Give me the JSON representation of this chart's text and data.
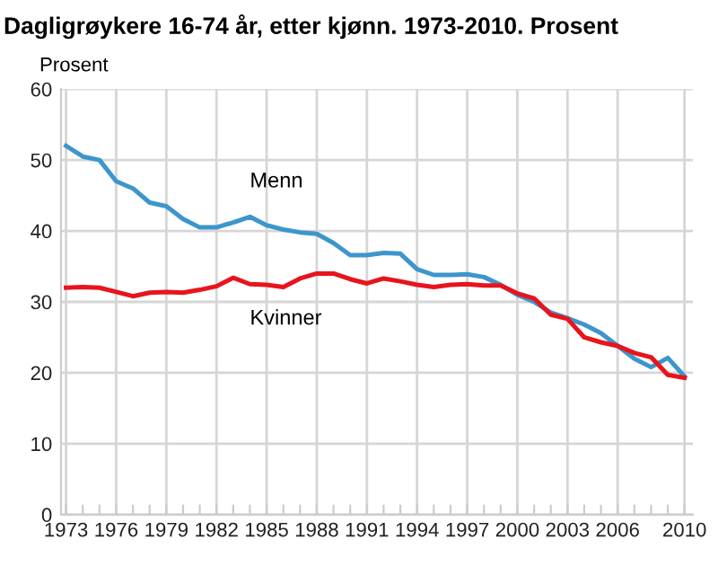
{
  "chart_data": {
    "type": "line",
    "title": "Dagligrøykere 16-74 år, etter kjønn. 1973-2010. Prosent",
    "ylabel": "Prosent",
    "x": [
      1973,
      1974,
      1975,
      1976,
      1977,
      1978,
      1979,
      1980,
      1981,
      1982,
      1983,
      1984,
      1985,
      1986,
      1987,
      1988,
      1989,
      1990,
      1991,
      1992,
      1993,
      1994,
      1995,
      1996,
      1997,
      1998,
      1999,
      2000,
      2001,
      2002,
      2003,
      2004,
      2005,
      2006,
      2007,
      2008,
      2009,
      2010
    ],
    "series": [
      {
        "name": "Menn",
        "color": "#3c96cc",
        "values": [
          52,
          50.5,
          50,
          47,
          46,
          44,
          43.5,
          41.7,
          40.5,
          40.5,
          41.2,
          42,
          40.8,
          40.2,
          39.8,
          39.6,
          38.3,
          36.6,
          36.6,
          36.9,
          36.8,
          34.6,
          33.8,
          33.8,
          33.9,
          33.5,
          32.4,
          31,
          30,
          28.5,
          27.7,
          26.8,
          25.6,
          23.8,
          22,
          20.8,
          22.1,
          19.5
        ]
      },
      {
        "name": "Kvinner",
        "color": "#e8141c",
        "values": [
          32,
          32.1,
          32,
          31.4,
          30.8,
          31.3,
          31.4,
          31.3,
          31.7,
          32.2,
          33.4,
          32.5,
          32.4,
          32.1,
          33.3,
          34,
          34,
          33.2,
          32.6,
          33.3,
          32.9,
          32.4,
          32.1,
          32.4,
          32.5,
          32.3,
          32.3,
          31.2,
          30.5,
          28.2,
          27.6,
          25,
          24.3,
          23.8,
          22.8,
          22.2,
          19.7,
          19.3
        ]
      }
    ],
    "xlim": [
      1972.7,
      2010.5
    ],
    "ylim": [
      0,
      60
    ],
    "yticks": [
      0,
      10,
      20,
      30,
      40,
      50,
      60
    ],
    "xticks": [
      1973,
      {
        "value": 1974,
        "label": null
      },
      {
        "value": 1975,
        "label": null
      },
      1976,
      {
        "value": 1977,
        "label": null
      },
      {
        "value": 1978,
        "label": null
      },
      1979,
      {
        "value": 1980,
        "label": null
      },
      {
        "value": 1981,
        "label": null
      },
      1982,
      {
        "value": 1983,
        "label": null
      },
      {
        "value": 1984,
        "label": null
      },
      1985,
      {
        "value": 1986,
        "label": null
      },
      {
        "value": 1987,
        "label": null
      },
      1988,
      {
        "value": 1989,
        "label": null
      },
      {
        "value": 1990,
        "label": null
      },
      1991,
      {
        "value": 1992,
        "label": null
      },
      {
        "value": 1993,
        "label": null
      },
      1994,
      {
        "value": 1995,
        "label": null
      },
      {
        "value": 1996,
        "label": null
      },
      1997,
      {
        "value": 1998,
        "label": null
      },
      {
        "value": 1999,
        "label": null
      },
      2000,
      {
        "value": 2001,
        "label": null
      },
      {
        "value": 2002,
        "label": null
      },
      2003,
      {
        "value": 2004,
        "label": null
      },
      {
        "value": 2005,
        "label": null
      },
      2006,
      {
        "value": 2007,
        "label": null
      },
      {
        "value": 2008,
        "label": null
      },
      {
        "value": 2009,
        "label": null
      },
      2010
    ],
    "grid": true,
    "legend": false,
    "marker": "none",
    "line_style": "solid"
  }
}
